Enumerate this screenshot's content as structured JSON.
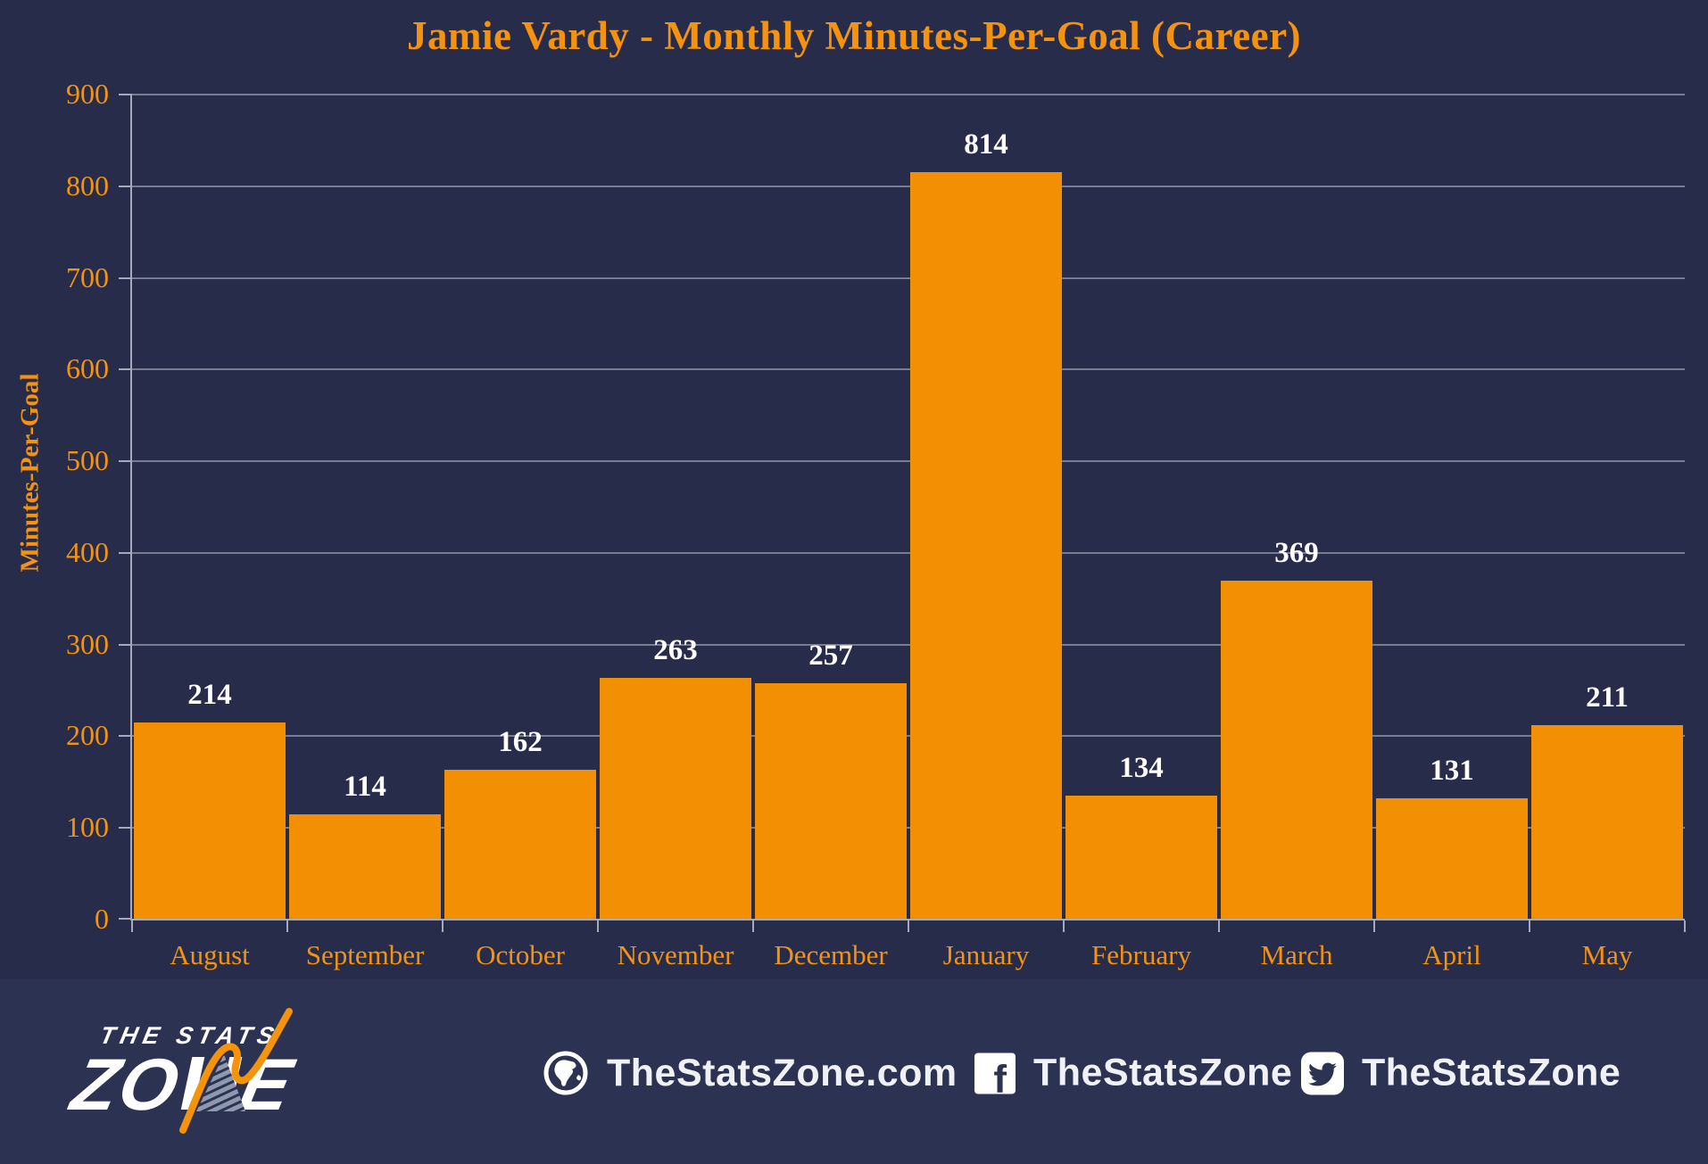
{
  "chart_data": {
    "type": "bar",
    "title": "Jamie Vardy - Monthly Minutes-Per-Goal (Career)",
    "categories": [
      "August",
      "September",
      "October",
      "November",
      "December",
      "January",
      "February",
      "March",
      "April",
      "May"
    ],
    "values": [
      214,
      114,
      162,
      263,
      257,
      814,
      134,
      369,
      131,
      211
    ],
    "xlabel": "",
    "ylabel": "Minutes-Per-Goal",
    "ylim": [
      0,
      900
    ],
    "ytick_step": 100,
    "ytick_labels": [
      "0",
      "100",
      "200",
      "300",
      "400",
      "500",
      "600",
      "700",
      "800",
      "900"
    ],
    "grid": "horizontal",
    "legend": "none",
    "bar_color": "#F28F02",
    "value_label_color": "#FFFFFF"
  },
  "colors": {
    "chart_background": "#272C4B",
    "footer_background": "#2B3252",
    "accent_orange": "#F6930E",
    "gridline": "#767D92",
    "axis": "#A6AAB8",
    "footer_text": "#EFF1F5"
  },
  "footer": {
    "logo": {
      "line1": "THE STATS",
      "line2": "ZONE"
    },
    "links": [
      {
        "icon": "globe-icon",
        "label": "TheStatsZone.com"
      },
      {
        "icon": "facebook-icon",
        "label": "TheStatsZone"
      },
      {
        "icon": "twitter-icon",
        "label": "TheStatsZone"
      }
    ]
  }
}
